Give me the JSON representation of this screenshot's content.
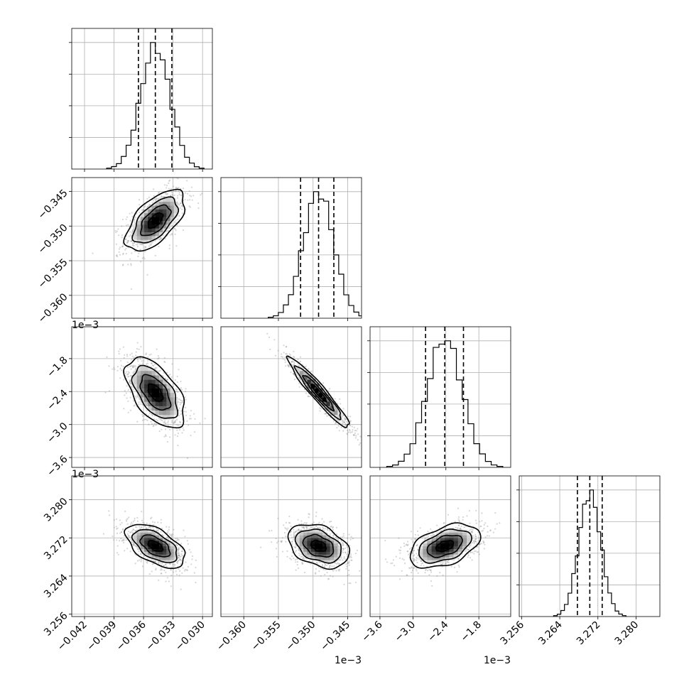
{
  "chart_data": {
    "type": "corner",
    "parameters": [
      {
        "range": [
          -0.0433,
          -0.029
        ],
        "ticks": [
          -0.042,
          -0.039,
          -0.036,
          -0.033,
          -0.03
        ],
        "tick_labels": [
          "−0.042",
          "−0.039",
          "−0.036",
          "−0.033",
          "−0.030"
        ],
        "offset_text": "",
        "mean": -0.0348,
        "sigma": 0.0015,
        "quantiles": [
          -0.03652,
          -0.0348,
          -0.03312
        ]
      },
      {
        "range": [
          -0.3633,
          -0.343
        ],
        "ticks": [
          -0.36,
          -0.355,
          -0.35,
          -0.345
        ],
        "tick_labels": [
          "−0.360",
          "−0.355",
          "−0.350",
          "−0.345"
        ],
        "offset_text": "1e−3",
        "mean": -0.3492,
        "sigma": 0.0022,
        "quantiles": [
          -0.3518,
          -0.3492,
          -0.347
        ]
      },
      {
        "range": [
          -3.78,
          -1.22
        ],
        "ticks": [
          -3.6,
          -3.0,
          -2.4,
          -1.8
        ],
        "tick_labels": [
          "−3.6",
          "−3.0",
          "−2.4",
          "−1.8"
        ],
        "offset_text": "1e−3",
        "mean": -2.42,
        "sigma": 0.32,
        "quantiles": [
          -2.77,
          -2.42,
          -2.08
        ]
      },
      {
        "range": [
          3.2555,
          3.285
        ],
        "ticks": [
          3.256,
          3.264,
          3.272,
          3.28
        ],
        "tick_labels": [
          "3.256",
          "3.264",
          "3.272",
          "3.280"
        ],
        "offset_text": "",
        "mean": 3.2703,
        "sigma": 0.0023,
        "quantiles": [
          3.2677,
          3.2703,
          3.2729
        ]
      }
    ],
    "correlations": [
      [
        1.0,
        0.6,
        -0.55,
        -0.55
      ],
      [
        0.6,
        1.0,
        -0.95,
        -0.35
      ],
      [
        -0.55,
        -0.95,
        1.0,
        0.45
      ],
      [
        -0.55,
        -0.35,
        0.45,
        1.0
      ]
    ],
    "histogram_bins": 20,
    "contour_levels_sigma": [
      0.5,
      1.0,
      1.5,
      2.0
    ],
    "grid": true,
    "quantile_lines": "dashed"
  }
}
